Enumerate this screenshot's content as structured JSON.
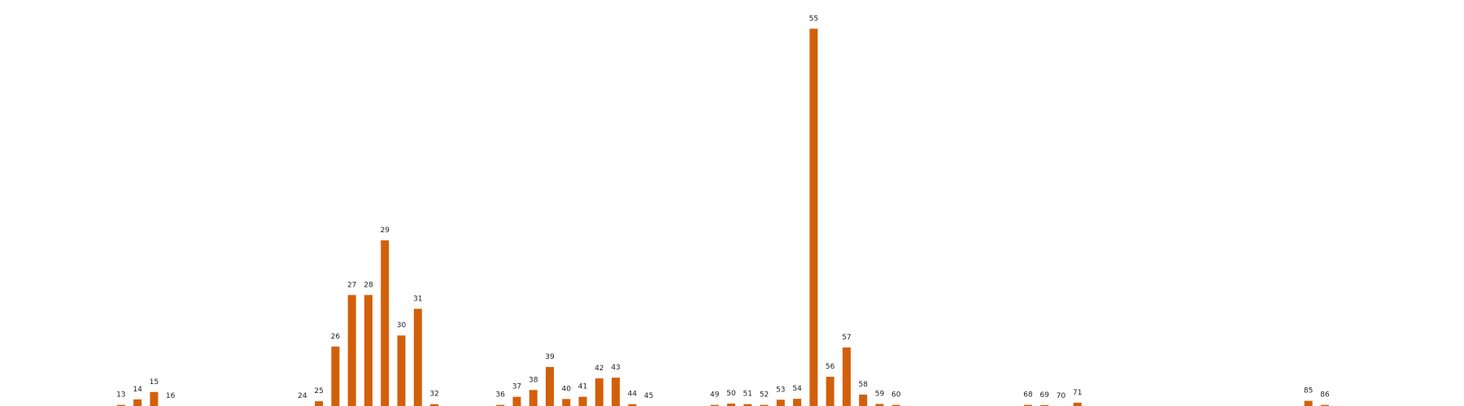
{
  "chart_data": {
    "type": "bar",
    "categories": [
      "13",
      "14",
      "15",
      "16",
      "24",
      "25",
      "26",
      "27",
      "28",
      "29",
      "30",
      "31",
      "32",
      "36",
      "37",
      "38",
      "39",
      "40",
      "41",
      "42",
      "43",
      "44",
      "45",
      "49",
      "50",
      "51",
      "52",
      "53",
      "54",
      "55",
      "56",
      "57",
      "58",
      "59",
      "60",
      "68",
      "69",
      "70",
      "71",
      "85",
      "86"
    ],
    "values": [
      0.6,
      3.6,
      7.6,
      0,
      0,
      2.6,
      32.3,
      60.3,
      60.3,
      90.0,
      38.3,
      52.8,
      1.0,
      0.6,
      5.0,
      8.7,
      21.2,
      3.8,
      5.0,
      15.0,
      15.4,
      1.0,
      0,
      0.6,
      1.3,
      1.0,
      0.6,
      3.4,
      3.9,
      205.0,
      15.9,
      31.8,
      6.2,
      1.1,
      0.6,
      0.6,
      0.5,
      0,
      1.8,
      2.8,
      0.6
    ],
    "x_min": 10,
    "x_max": 90,
    "ylim": [
      0,
      210
    ],
    "bar_color": "#d2600a",
    "grid": false,
    "axes_visible": false
  }
}
